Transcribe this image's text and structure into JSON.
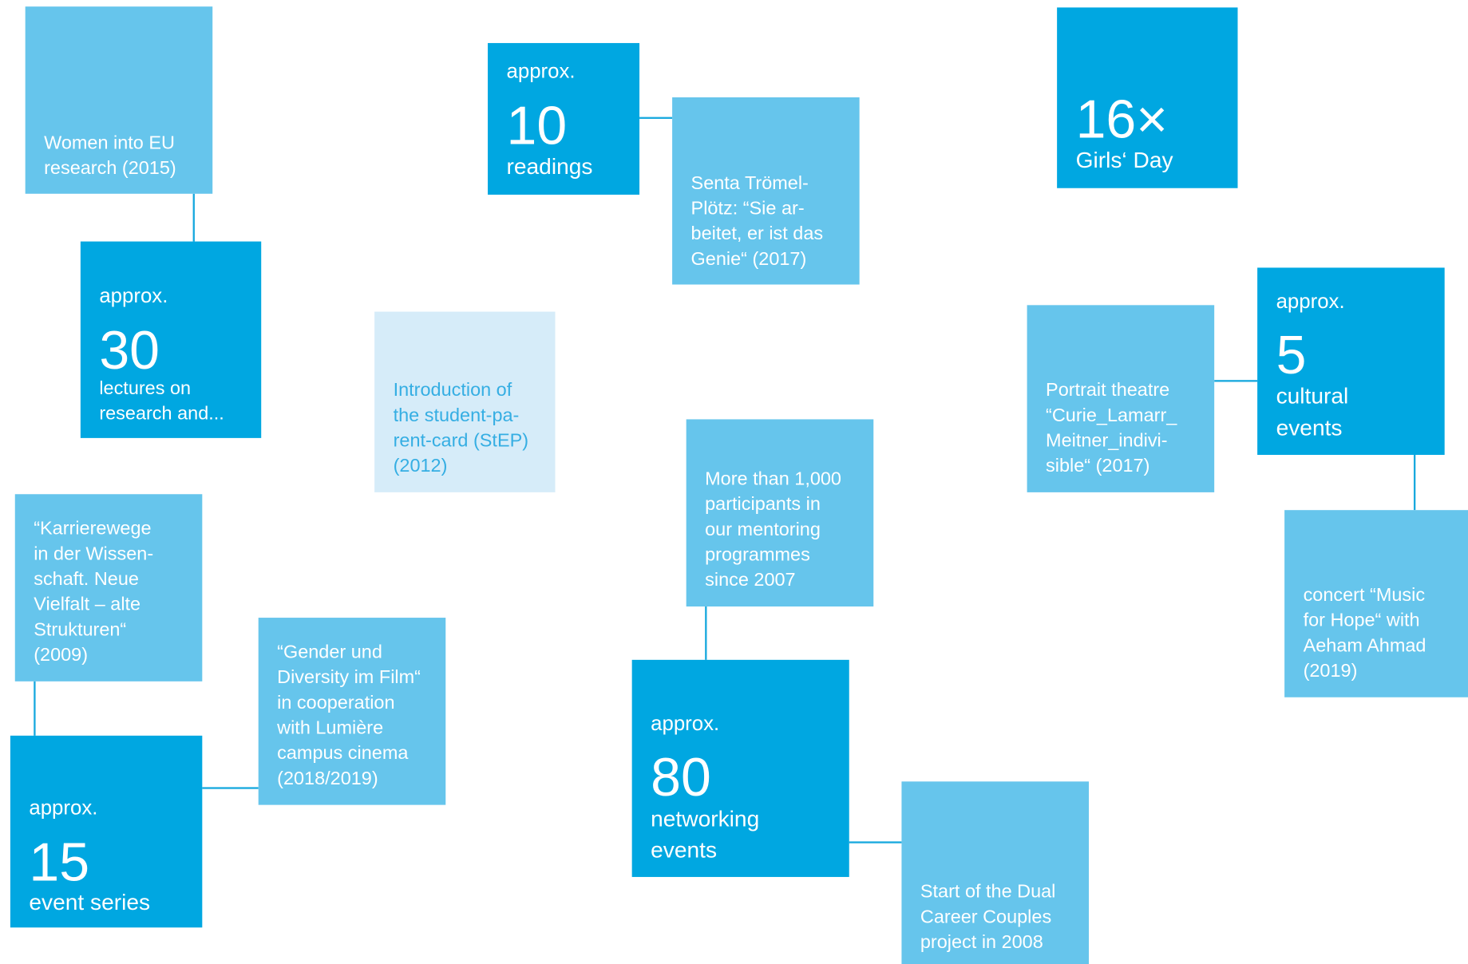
{
  "boxes": [
    {
      "lines": [
        "Women into EU",
        "research (2015)"
      ]
    },
    {
      "prefix": "approx.",
      "number": "30",
      "lines": [
        "lectures on",
        "research and..."
      ]
    },
    {
      "prefix": "approx.",
      "number": "10",
      "lines": [
        "readings"
      ]
    },
    {
      "lines": [
        "Senta Trömel-",
        "Plötz: “Sie ar-",
        "beitet, er ist das",
        "Genie“ (2017)"
      ]
    },
    {
      "number": "16×",
      "lines": [
        "Girls‘ Day"
      ]
    },
    {
      "lines": [
        "Introduction of",
        "the student-pa-",
        "rent-card (StEP)",
        "(2012)"
      ]
    },
    {
      "lines": [
        "Portrait theatre",
        "“Curie_Lamarr_",
        "Meitner_indivi-",
        "sible“ (2017)"
      ]
    },
    {
      "prefix": "approx.",
      "number": "5",
      "lines": [
        "cultural",
        "events"
      ]
    },
    {
      "lines": [
        "concert “Music",
        "for Hope“ with",
        "Aeham Ahmad",
        "(2019)"
      ]
    },
    {
      "lines": [
        "More than 1,000",
        "participants in",
        "our mentoring",
        "programmes",
        "since 2007"
      ]
    },
    {
      "prefix": "approx.",
      "number": "80",
      "lines": [
        "networking",
        "events"
      ]
    },
    {
      "lines": [
        "Start of the Dual",
        "Career Couples",
        "project in 2008"
      ]
    },
    {
      "lines": [
        "“Karrierewege",
        "in der Wissen-",
        "schaft. Neue",
        "Vielfalt – alte",
        "Strukturen“",
        "(2009)"
      ]
    },
    {
      "prefix": "approx.",
      "number": "15",
      "lines": [
        "event series"
      ]
    },
    {
      "lines": [
        "“Gender und",
        "Diversity im Film“",
        "in cooperation",
        "with Lumière",
        "campus cinema",
        "(2018/2019)"
      ]
    }
  ]
}
